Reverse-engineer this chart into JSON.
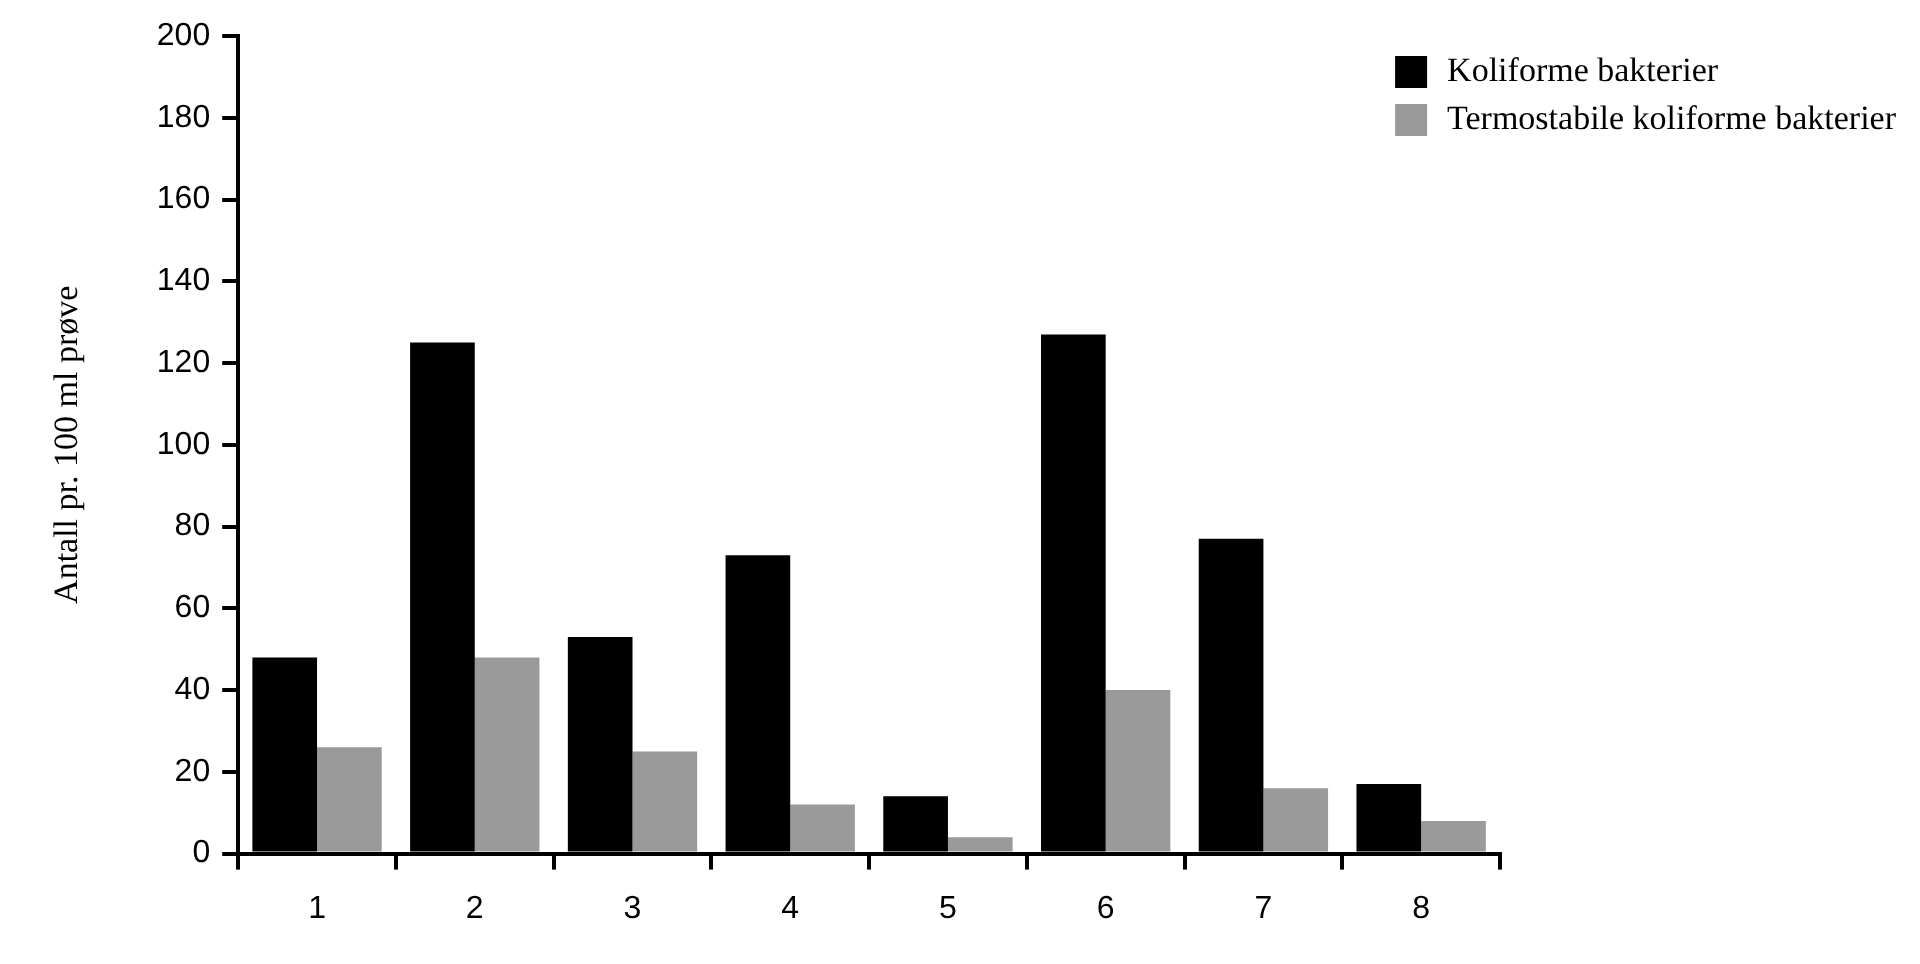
{
  "chart_data": {
    "type": "bar",
    "ylabel": "Antall pr. 100 ml prøve",
    "categories": [
      "1",
      "2",
      "3",
      "4",
      "5",
      "6",
      "7",
      "8"
    ],
    "series": [
      {
        "name": "Koliforme bakterier",
        "color": "#000000",
        "values": [
          48,
          125,
          53,
          73,
          14,
          127,
          77,
          17
        ]
      },
      {
        "name": "Termostabile koliforme bakterier",
        "color": "#9a9a9a",
        "values": [
          26,
          48,
          25,
          12,
          4,
          40,
          16,
          8
        ]
      }
    ],
    "ylim": [
      0,
      200
    ],
    "yticks": [
      0,
      20,
      40,
      60,
      80,
      100,
      120,
      140,
      160,
      180,
      200
    ],
    "grid": false,
    "legend": "top right"
  }
}
